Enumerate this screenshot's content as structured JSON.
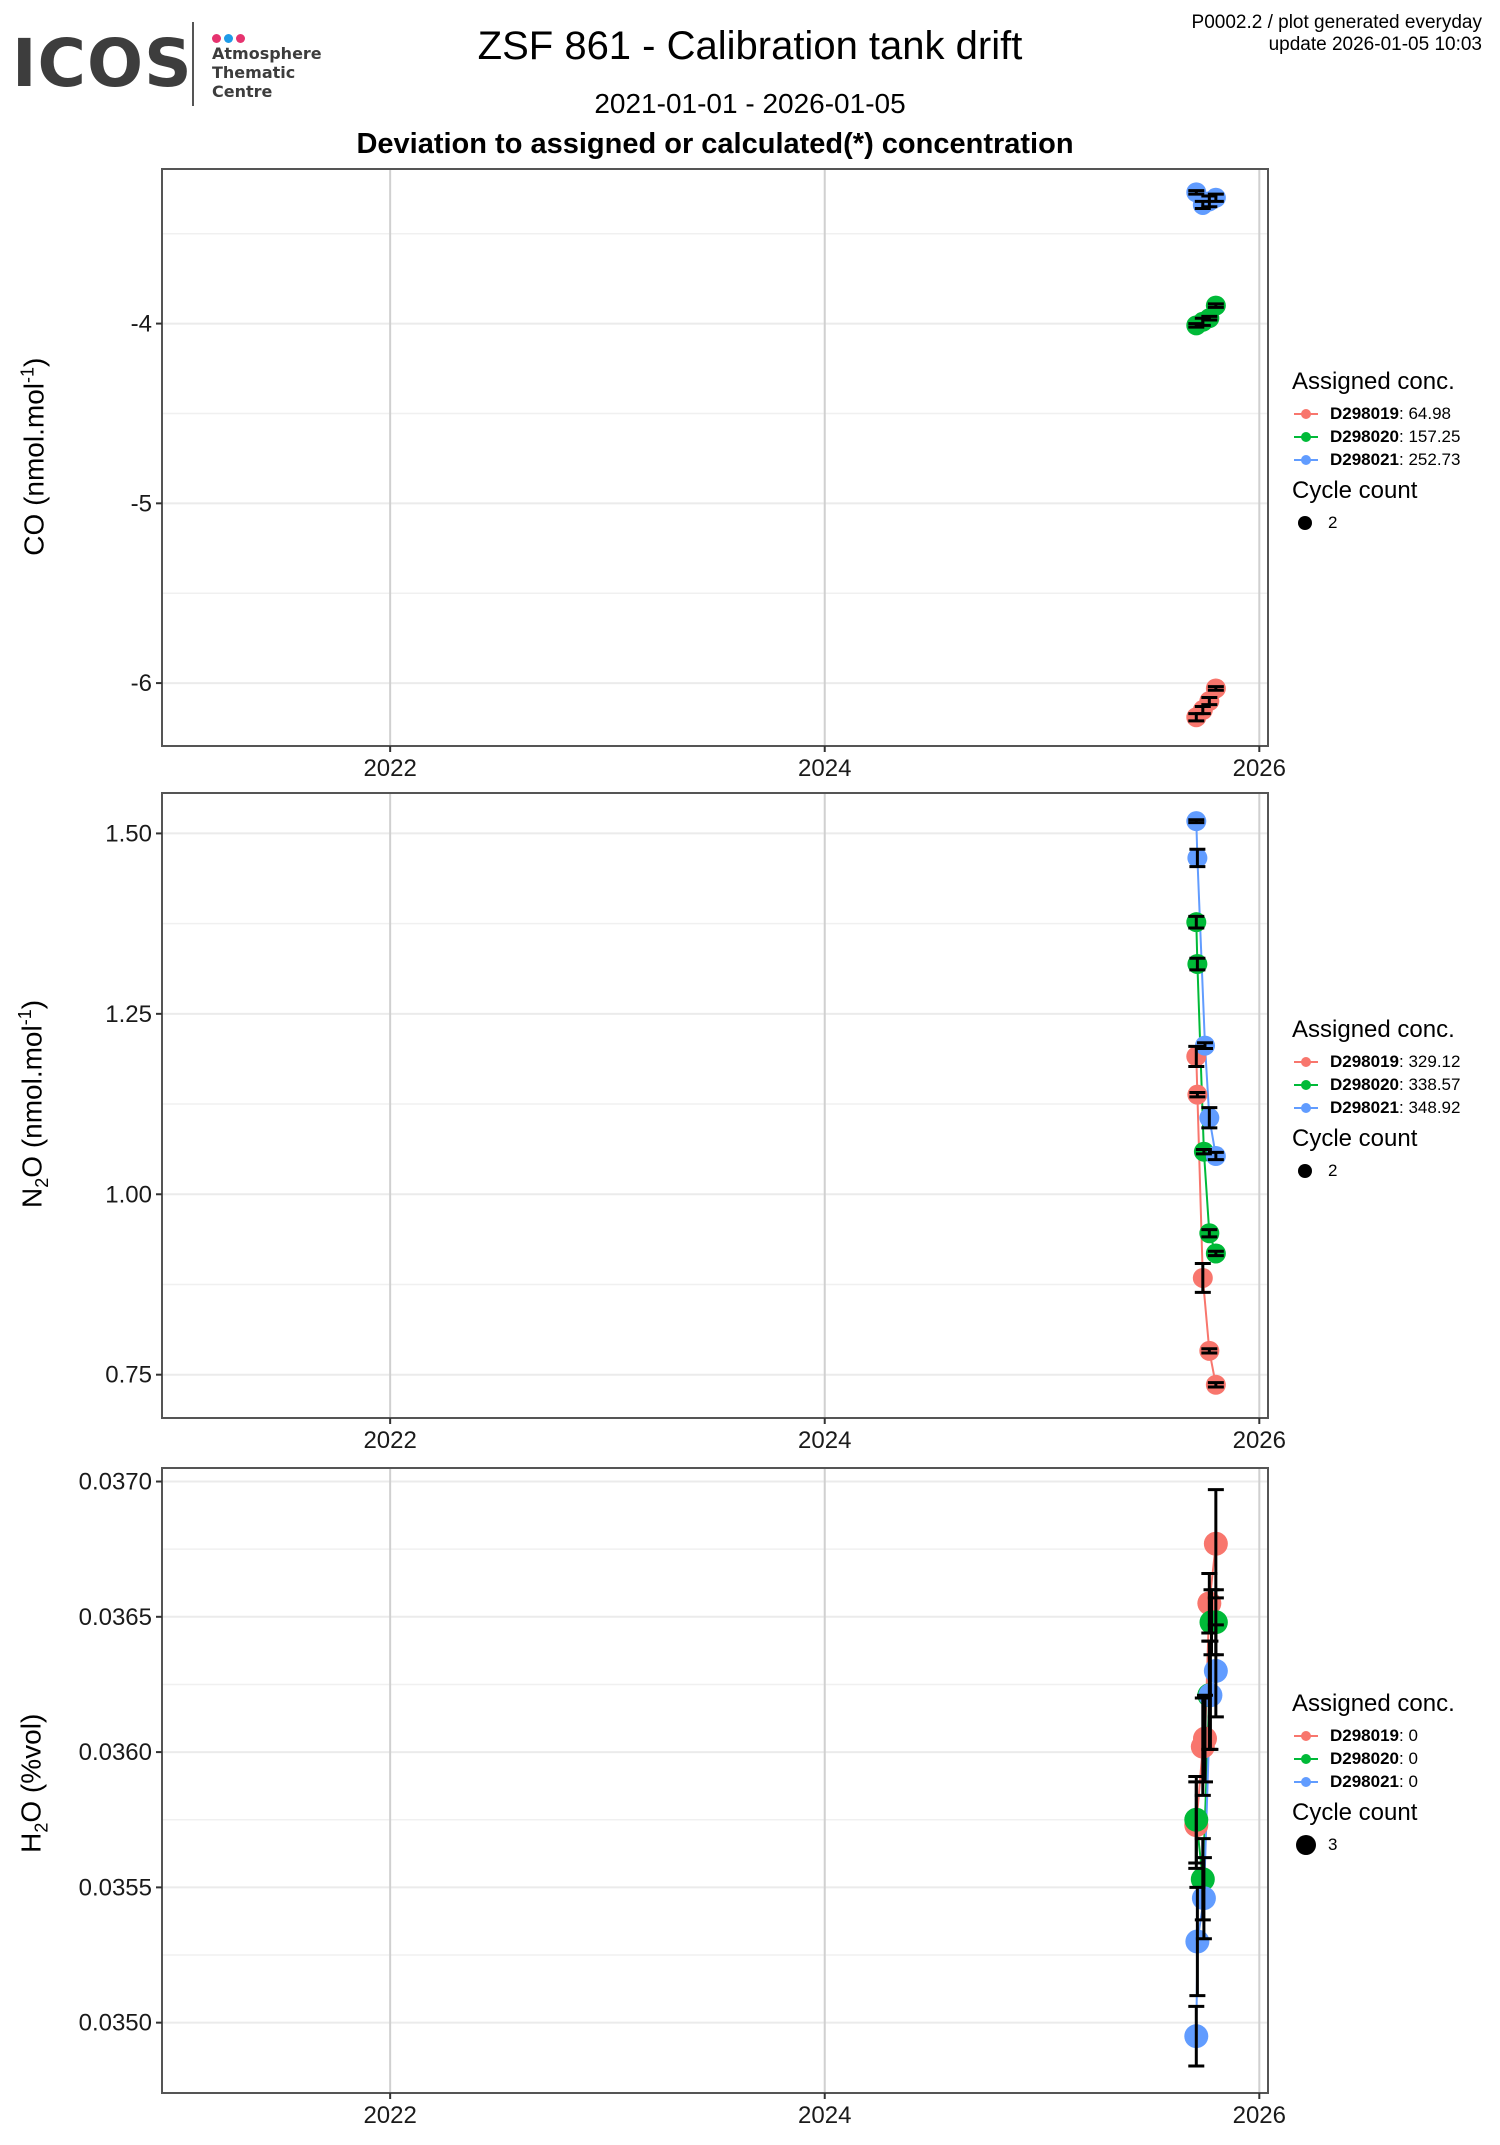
{
  "header": {
    "logo_text": "ICOS",
    "logo_subtitle": [
      "Atmosphere",
      "Thematic",
      "Centre"
    ],
    "logo_dot_colors": [
      "#e6336f",
      "#1e9be8",
      "#e6336f"
    ],
    "title": "ZSF 861 - Calibration tank drift",
    "date_range": "2021-01-01 - 2026-01-05",
    "heading": "Deviation to assigned or calculated(*) concentration",
    "meta_line1": "P0002.2 / plot generated everyday",
    "meta_line2": "update  2026-01-05 10:03"
  },
  "colors": {
    "D298019": "#f8766d",
    "D298020": "#00ba38",
    "D298021": "#619cff"
  },
  "chart_data": [
    {
      "type": "scatter",
      "species": "CO",
      "ylabel_main": "CO (nmol.mol",
      "ylabel_sup": "-1",
      "ylabel_end": ")",
      "xlim": [
        2020.95,
        2026.04
      ],
      "ylim": [
        -6.35,
        -3.14
      ],
      "xticks": [
        2022,
        2024,
        2026
      ],
      "xtick_labels": [
        "2022",
        "2024",
        "2026"
      ],
      "yticks": [
        -4,
        -5,
        -6
      ],
      "ytick_labels": [
        "-4",
        "-5",
        "-6"
      ],
      "yminor": [
        -3.5,
        -4.5,
        -5.5
      ],
      "legend": {
        "title": "Assigned conc.",
        "entries": [
          {
            "tank": "D298019",
            "value": ": 64.98"
          },
          {
            "tank": "D298020",
            "value": ": 157.25"
          },
          {
            "tank": "D298021",
            "value": ": 252.73"
          }
        ],
        "cycle_title": "Cycle count",
        "cycle_value": "2"
      },
      "series": [
        {
          "name": "D298019",
          "x": [
            2025.71,
            2025.74,
            2025.77,
            2025.8
          ],
          "y": [
            -6.19,
            -6.15,
            -6.1,
            -6.03
          ],
          "err": [
            0.02,
            0.02,
            0.02,
            0.01
          ]
        },
        {
          "name": "D298020",
          "x": [
            2025.71,
            2025.74,
            2025.77,
            2025.8
          ],
          "y": [
            -4.01,
            -3.99,
            -3.97,
            -3.9
          ],
          "err": [
            0.01,
            0.02,
            0.01,
            0.01
          ]
        },
        {
          "name": "D298021",
          "x": [
            2025.71,
            2025.74,
            2025.77,
            2025.8
          ],
          "y": [
            -3.27,
            -3.34,
            -3.32,
            -3.3
          ],
          "err": [
            0.01,
            0.02,
            0.03,
            0.02
          ]
        }
      ]
    },
    {
      "type": "scatter",
      "species": "N2O",
      "ylabel_main": "N",
      "ylabel_sub": "2",
      "ylabel_mid": "O (nmol.mol",
      "ylabel_sup": "-1",
      "ylabel_end": ")",
      "xlim": [
        2020.95,
        2026.04
      ],
      "ylim": [
        0.69,
        1.556
      ],
      "xticks": [
        2022,
        2024,
        2026
      ],
      "xtick_labels": [
        "2022",
        "2024",
        "2026"
      ],
      "yticks": [
        1.5,
        1.25,
        1.0,
        0.75
      ],
      "ytick_labels": [
        "1.50",
        "1.25",
        "1.00",
        "0.75"
      ],
      "yminor": [
        1.375,
        1.125,
        0.875
      ],
      "legend": {
        "title": "Assigned conc.",
        "entries": [
          {
            "tank": "D298019",
            "value": ": 329.12"
          },
          {
            "tank": "D298020",
            "value": ": 338.57"
          },
          {
            "tank": "D298021",
            "value": ": 348.92"
          }
        ],
        "cycle_title": "Cycle count",
        "cycle_value": "2"
      },
      "series": [
        {
          "name": "D298019",
          "x": [
            2025.71,
            2025.715,
            2025.74,
            2025.77,
            2025.8
          ],
          "y": [
            1.191,
            1.138,
            0.884,
            0.783,
            0.736
          ],
          "err": [
            0.014,
            0.003,
            0.02,
            0.003,
            0.003
          ]
        },
        {
          "name": "D298020",
          "x": [
            2025.71,
            2025.715,
            2025.745,
            2025.77,
            2025.8
          ],
          "y": [
            1.377,
            1.319,
            1.059,
            0.946,
            0.918
          ],
          "err": [
            0.008,
            0.008,
            0.003,
            0.005,
            0.003
          ]
        },
        {
          "name": "D298021",
          "x": [
            2025.71,
            2025.715,
            2025.75,
            2025.77,
            2025.8
          ],
          "y": [
            1.517,
            1.466,
            1.206,
            1.106,
            1.053
          ],
          "err": [
            0.002,
            0.012,
            0.004,
            0.014,
            0.005
          ]
        }
      ]
    },
    {
      "type": "scatter",
      "species": "H2O",
      "ylabel_main": "H",
      "ylabel_sub": "2",
      "ylabel_mid": "O (%vol)",
      "xlim": [
        2020.95,
        2026.04
      ],
      "ylim": [
        0.03474,
        0.03705
      ],
      "xticks": [
        2022,
        2024,
        2026
      ],
      "xtick_labels": [
        "2022",
        "2024",
        "2026"
      ],
      "yticks": [
        0.037,
        0.0365,
        0.036,
        0.0355,
        0.035
      ],
      "ytick_labels": [
        "0.0370",
        "0.0365",
        "0.0360",
        "0.0355",
        "0.0350"
      ],
      "yminor": [
        0.03675,
        0.03625,
        0.03575,
        0.03525
      ],
      "legend": {
        "title": "Assigned conc.",
        "entries": [
          {
            "tank": "D298019",
            "value": ": 0"
          },
          {
            "tank": "D298020",
            "value": ": 0"
          },
          {
            "tank": "D298021",
            "value": ": 0"
          }
        ],
        "cycle_title": "Cycle count",
        "cycle_value": "3"
      },
      "series": [
        {
          "name": "D298019",
          "x": [
            2025.71,
            2025.74,
            2025.75,
            2025.77,
            2025.8
          ],
          "y": [
            0.03573,
            0.03602,
            0.03605,
            0.03655,
            0.03677
          ],
          "err": [
            0.00016,
            0.00018,
            0.00016,
            0.00011,
            0.0002
          ]
        },
        {
          "name": "D298020",
          "x": [
            2025.71,
            2025.74,
            2025.77,
            2025.78,
            2025.8
          ],
          "y": [
            0.03575,
            0.03553,
            0.03621,
            0.03648,
            0.03648
          ],
          "err": [
            0.00016,
            0.00015,
            0.0002,
            0.00012,
            0.00012
          ]
        },
        {
          "name": "D298021",
          "x": [
            2025.71,
            2025.715,
            2025.745,
            2025.775,
            2025.8
          ],
          "y": [
            0.03495,
            0.0353,
            0.03546,
            0.03621,
            0.0363
          ],
          "err": [
            0.00011,
            0.0002,
            0.00015,
            0.0002,
            0.00017
          ]
        }
      ]
    }
  ]
}
